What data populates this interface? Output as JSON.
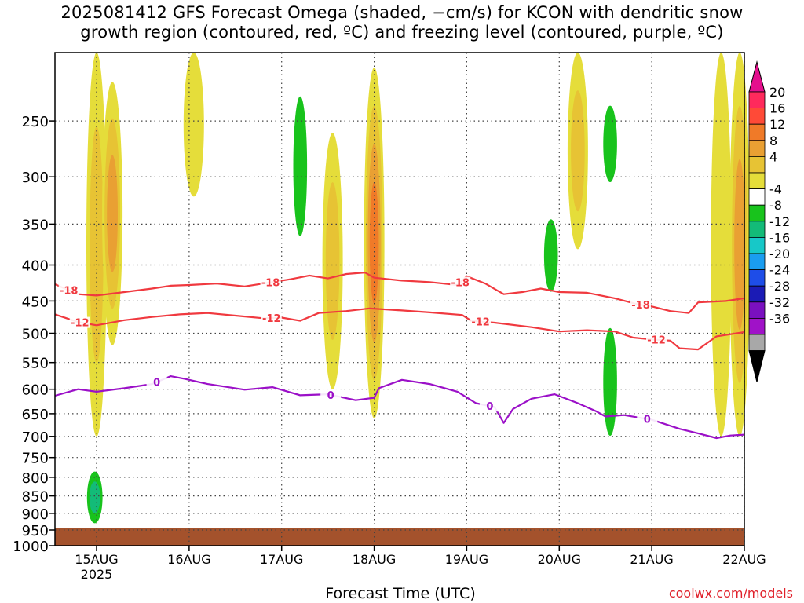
{
  "title": {
    "line1": "2025081412 GFS Forecast Omega (shaded, −cm/s) for KCON with dendritic snow",
    "line2": "growth region (contoured, red, ºC) and freezing level (contoured, purple, ºC)"
  },
  "credit": "coolwx.com/models",
  "chart_data": {
    "type": "heatmap",
    "xlabel": "Forecast Time (UTC)",
    "ylabel": "",
    "x_ticks": [
      "15AUG",
      "16AUG",
      "17AUG",
      "18AUG",
      "19AUG",
      "20AUG",
      "21AUG",
      "22AUG"
    ],
    "x_tick_year": "2025",
    "x_range_days": [
      14.55,
      22.0
    ],
    "y_ticks": [
      250,
      300,
      350,
      400,
      450,
      500,
      550,
      600,
      650,
      700,
      750,
      800,
      850,
      900,
      950,
      1000
    ],
    "y_range_hpa": [
      1000,
      200
    ],
    "y_scale": "log-pressure",
    "grid": true,
    "colorbar": {
      "labels": [
        20,
        16,
        12,
        8,
        4,
        -4,
        -8,
        -12,
        -16,
        -20,
        -24,
        -28,
        -32,
        -36
      ],
      "colors": [
        "#ff2a5c",
        "#ff4a37",
        "#f07a28",
        "#e9a033",
        "#e7c334",
        "#e5dd3a",
        "#ffffff",
        "#18c31c",
        "#13bb78",
        "#17c8c8",
        "#1a9df0",
        "#1e4de8",
        "#1b1bb5",
        "#7a10c0",
        "#a012c8",
        "#a8a8a8"
      ],
      "top_triangle_color": "#e40f8d",
      "bottom_triangle_color": "#000000"
    },
    "omega_features": [
      {
        "day": 14.98,
        "p_top": 760,
        "p_bot": 960,
        "value": -16
      },
      {
        "day": 15.0,
        "p_top": 200,
        "p_bot": 700,
        "value": 8
      },
      {
        "day": 15.17,
        "p_top": 220,
        "p_bot": 520,
        "value": 12
      },
      {
        "day": 16.05,
        "p_top": 200,
        "p_bot": 320,
        "value": 4
      },
      {
        "day": 16.95,
        "p_top": 200,
        "p_bot": 430,
        "value": -8
      },
      {
        "day": 17.2,
        "p_top": 200,
        "p_bot": 420,
        "value": -12
      },
      {
        "day": 17.55,
        "p_top": 260,
        "p_bot": 600,
        "value": 8
      },
      {
        "day": 18.0,
        "p_top": 210,
        "p_bot": 660,
        "value": 16
      },
      {
        "day": 18.13,
        "p_top": 580,
        "p_bot": 950,
        "value": -8
      },
      {
        "day": 19.0,
        "p_top": 470,
        "p_bot": 660,
        "value": -8
      },
      {
        "day": 19.91,
        "p_top": 320,
        "p_bot": 470,
        "value": -12
      },
      {
        "day": 20.2,
        "p_top": 200,
        "p_bot": 380,
        "value": 8
      },
      {
        "day": 20.55,
        "p_top": 440,
        "p_bot": 780,
        "value": -12
      },
      {
        "day": 20.55,
        "p_top": 220,
        "p_bot": 330,
        "value": -12
      },
      {
        "day": 21.75,
        "p_top": 200,
        "p_bot": 700,
        "value": 4
      },
      {
        "day": 21.95,
        "p_top": 200,
        "p_bot": 700,
        "value": 12
      }
    ],
    "contours": [
      {
        "name": "-18",
        "color": "#f0393f",
        "labels": [
          {
            "day": 14.7,
            "text": "-18"
          },
          {
            "day": 16.88,
            "text": "-18"
          },
          {
            "day": 18.93,
            "text": "-18"
          },
          {
            "day": 20.88,
            "text": "-18"
          }
        ],
        "points": [
          [
            14.55,
            426
          ],
          [
            14.8,
            440
          ],
          [
            15.0,
            442
          ],
          [
            15.3,
            437
          ],
          [
            15.6,
            432
          ],
          [
            15.8,
            428
          ],
          [
            16.0,
            427
          ],
          [
            16.3,
            425
          ],
          [
            16.6,
            429
          ],
          [
            16.9,
            423
          ],
          [
            17.1,
            419
          ],
          [
            17.3,
            414
          ],
          [
            17.5,
            418
          ],
          [
            17.7,
            412
          ],
          [
            17.9,
            410
          ],
          [
            18.0,
            417
          ],
          [
            18.3,
            421
          ],
          [
            18.6,
            423
          ],
          [
            18.9,
            427
          ],
          [
            19.0,
            415
          ],
          [
            19.2,
            425
          ],
          [
            19.4,
            440
          ],
          [
            19.6,
            437
          ],
          [
            19.8,
            432
          ],
          [
            20.0,
            437
          ],
          [
            20.3,
            438
          ],
          [
            20.6,
            446
          ],
          [
            20.85,
            455
          ],
          [
            21.0,
            458
          ],
          [
            21.2,
            465
          ],
          [
            21.4,
            468
          ],
          [
            21.5,
            452
          ],
          [
            21.8,
            450
          ],
          [
            22.0,
            446
          ]
        ]
      },
      {
        "name": "-12",
        "color": "#f0393f",
        "labels": [
          {
            "day": 14.82,
            "text": "-12"
          },
          {
            "day": 16.89,
            "text": "-12"
          },
          {
            "day": 19.15,
            "text": "-12"
          },
          {
            "day": 21.05,
            "text": "-12"
          }
        ],
        "points": [
          [
            14.55,
            470
          ],
          [
            14.8,
            482
          ],
          [
            15.0,
            487
          ],
          [
            15.3,
            479
          ],
          [
            15.6,
            474
          ],
          [
            15.9,
            470
          ],
          [
            16.2,
            468
          ],
          [
            16.5,
            472
          ],
          [
            16.8,
            476
          ],
          [
            17.0,
            475
          ],
          [
            17.2,
            480
          ],
          [
            17.4,
            468
          ],
          [
            17.7,
            465
          ],
          [
            17.95,
            461
          ],
          [
            18.3,
            464
          ],
          [
            18.6,
            467
          ],
          [
            18.95,
            471
          ],
          [
            19.05,
            480
          ],
          [
            19.3,
            483
          ],
          [
            19.7,
            490
          ],
          [
            20.0,
            497
          ],
          [
            20.3,
            495
          ],
          [
            20.6,
            497
          ],
          [
            20.8,
            507
          ],
          [
            21.0,
            510
          ],
          [
            21.2,
            512
          ],
          [
            21.3,
            525
          ],
          [
            21.5,
            527
          ],
          [
            21.7,
            505
          ],
          [
            22.0,
            498
          ]
        ]
      },
      {
        "name": "0",
        "color": "#9b10c8",
        "labels": [
          {
            "day": 15.65,
            "text": "0"
          },
          {
            "day": 17.53,
            "text": "0"
          },
          {
            "day": 19.25,
            "text": "0"
          },
          {
            "day": 20.95,
            "text": "0"
          }
        ],
        "points": [
          [
            14.55,
            613
          ],
          [
            14.8,
            600
          ],
          [
            15.0,
            605
          ],
          [
            15.3,
            598
          ],
          [
            15.6,
            590
          ],
          [
            15.8,
            575
          ],
          [
            15.95,
            580
          ],
          [
            16.2,
            590
          ],
          [
            16.6,
            601
          ],
          [
            16.9,
            596
          ],
          [
            17.2,
            612
          ],
          [
            17.5,
            610
          ],
          [
            17.8,
            622
          ],
          [
            18.0,
            617
          ],
          [
            18.05,
            598
          ],
          [
            18.3,
            582
          ],
          [
            18.6,
            590
          ],
          [
            18.9,
            605
          ],
          [
            19.1,
            628
          ],
          [
            19.3,
            636
          ],
          [
            19.4,
            670
          ],
          [
            19.5,
            640
          ],
          [
            19.7,
            619
          ],
          [
            19.95,
            610
          ],
          [
            20.2,
            628
          ],
          [
            20.4,
            645
          ],
          [
            20.5,
            656
          ],
          [
            20.7,
            653
          ],
          [
            21.0,
            663
          ],
          [
            21.3,
            683
          ],
          [
            21.5,
            693
          ],
          [
            21.7,
            704
          ],
          [
            21.85,
            698
          ],
          [
            22.0,
            696
          ]
        ]
      }
    ]
  }
}
